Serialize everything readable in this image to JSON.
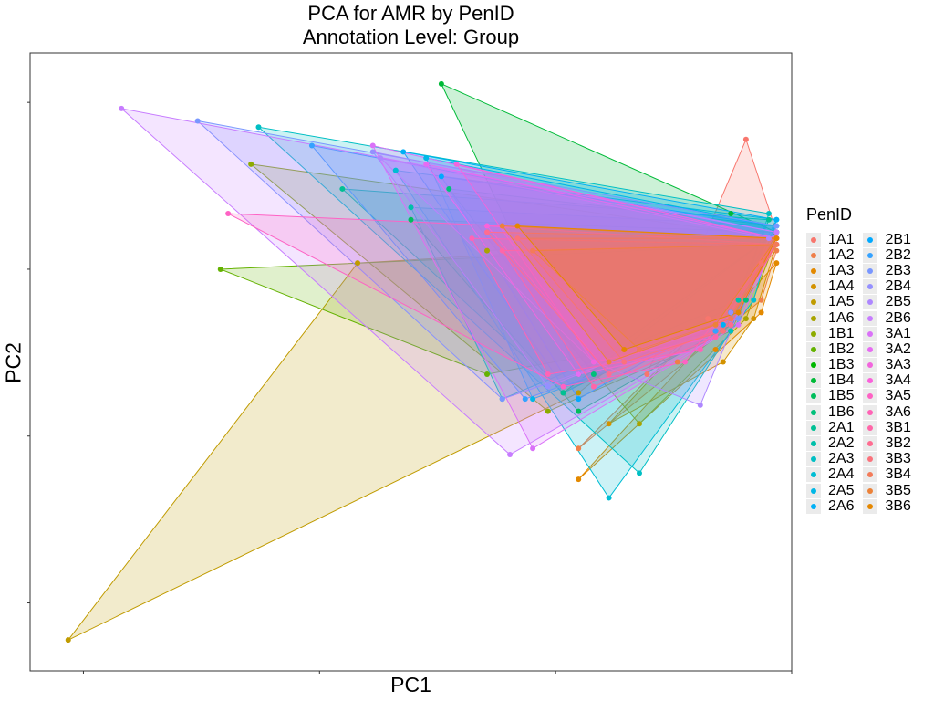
{
  "chart_data": {
    "type": "scatter",
    "title": "PCA for AMR by PenID",
    "subtitle": "Annotation Level: Group",
    "xlabel": "PC1",
    "ylabel": "PC2",
    "legend_title": "PenID",
    "legend_position": "right",
    "grid": false,
    "tick_labels_shown": false,
    "xlim": [
      0,
      100
    ],
    "ylim": [
      0,
      100
    ],
    "series": [
      {
        "name": "1A1",
        "color": "#F8766D",
        "points": [
          [
            94,
            86
          ],
          [
            98,
            71
          ],
          [
            96,
            66
          ],
          [
            89,
            57
          ],
          [
            81,
            48
          ]
        ]
      },
      {
        "name": "1A2",
        "color": "#EF7F49",
        "points": [
          [
            98,
            68
          ],
          [
            96,
            60
          ],
          [
            85,
            50
          ],
          [
            72,
            36
          ]
        ]
      },
      {
        "name": "1A3",
        "color": "#E38900",
        "points": [
          [
            98,
            66
          ],
          [
            96,
            58
          ],
          [
            90,
            52
          ],
          [
            72,
            31
          ]
        ]
      },
      {
        "name": "1A4",
        "color": "#D39200",
        "points": [
          [
            98,
            69
          ],
          [
            95,
            57
          ],
          [
            91,
            50
          ],
          [
            76,
            40
          ]
        ]
      },
      {
        "name": "1A5",
        "color": "#C09B00",
        "points": [
          [
            98,
            70
          ],
          [
            43,
            66
          ],
          [
            5,
            5
          ],
          [
            72,
            45
          ]
        ]
      },
      {
        "name": "1A6",
        "color": "#A9A400",
        "points": [
          [
            98,
            70
          ],
          [
            94,
            57
          ],
          [
            80,
            40
          ],
          [
            60,
            68
          ]
        ]
      },
      {
        "name": "1B1",
        "color": "#8DAB00",
        "points": [
          [
            98,
            70
          ],
          [
            29,
            82
          ],
          [
            92,
            55
          ],
          [
            68,
            42
          ]
        ]
      },
      {
        "name": "1B2",
        "color": "#64B200",
        "points": [
          [
            98,
            69
          ],
          [
            25,
            65
          ],
          [
            91,
            55
          ],
          [
            60,
            48
          ]
        ]
      },
      {
        "name": "1B3",
        "color": "#00B700",
        "points": [
          [
            98,
            71
          ],
          [
            92,
            58
          ],
          [
            70,
            45
          ]
        ]
      },
      {
        "name": "1B4",
        "color": "#00BA38",
        "points": [
          [
            98,
            71
          ],
          [
            54,
            95
          ],
          [
            92,
            74
          ],
          [
            72,
            48
          ]
        ]
      },
      {
        "name": "1B5",
        "color": "#00BD5C",
        "points": [
          [
            98,
            71
          ],
          [
            50,
            73
          ],
          [
            92,
            56
          ],
          [
            72,
            42
          ]
        ]
      },
      {
        "name": "1B6",
        "color": "#00C07A",
        "points": [
          [
            98,
            72
          ],
          [
            55,
            78
          ],
          [
            94,
            60
          ],
          [
            74,
            48
          ]
        ]
      },
      {
        "name": "2A1",
        "color": "#00C094",
        "points": [
          [
            97,
            73
          ],
          [
            41,
            78
          ],
          [
            92,
            58
          ],
          [
            70,
            45
          ]
        ]
      },
      {
        "name": "2A2",
        "color": "#00C0AA",
        "points": [
          [
            98,
            72
          ],
          [
            50,
            75
          ],
          [
            93,
            60
          ],
          [
            62,
            44
          ]
        ]
      },
      {
        "name": "2A3",
        "color": "#00BFC4",
        "points": [
          [
            97,
            74
          ],
          [
            30,
            88
          ],
          [
            80,
            32
          ],
          [
            92,
            55
          ]
        ]
      },
      {
        "name": "2A4",
        "color": "#00BDD4",
        "points": [
          [
            98,
            73
          ],
          [
            48,
            81
          ],
          [
            95,
            60
          ],
          [
            76,
            28
          ]
        ]
      },
      {
        "name": "2A5",
        "color": "#00B8E7",
        "points": [
          [
            98,
            72
          ],
          [
            52,
            83
          ],
          [
            90,
            55
          ],
          [
            66,
            44
          ]
        ]
      },
      {
        "name": "2A6",
        "color": "#00B0F6",
        "points": [
          [
            98,
            73
          ],
          [
            49,
            84
          ],
          [
            91,
            56
          ],
          [
            70,
            46
          ]
        ]
      },
      {
        "name": "2B1",
        "color": "#00A9FF",
        "points": [
          [
            98,
            72
          ],
          [
            54,
            80
          ],
          [
            92,
            58
          ],
          [
            72,
            44
          ]
        ]
      },
      {
        "name": "2B2",
        "color": "#35A2FF",
        "points": [
          [
            98,
            71
          ],
          [
            37,
            85
          ],
          [
            90,
            55
          ],
          [
            65,
            44
          ]
        ]
      },
      {
        "name": "2B3",
        "color": "#7997FF",
        "points": [
          [
            98,
            72
          ],
          [
            22,
            89
          ],
          [
            93,
            57
          ],
          [
            62,
            44
          ]
        ]
      },
      {
        "name": "2B4",
        "color": "#9590FF",
        "points": [
          [
            98,
            71
          ],
          [
            45,
            84
          ],
          [
            92,
            58
          ],
          [
            68,
            46
          ]
        ]
      },
      {
        "name": "2B5",
        "color": "#AE87FF",
        "points": [
          [
            97,
            70
          ],
          [
            46,
            83
          ],
          [
            88,
            43
          ],
          [
            74,
            50
          ]
        ]
      },
      {
        "name": "2B6",
        "color": "#C77CFF",
        "points": [
          [
            98,
            71
          ],
          [
            12,
            91
          ],
          [
            63,
            35
          ],
          [
            90,
            54
          ]
        ]
      },
      {
        "name": "3A1",
        "color": "#DA71F8",
        "points": [
          [
            98,
            70
          ],
          [
            45,
            85
          ],
          [
            66,
            36
          ],
          [
            93,
            56
          ]
        ]
      },
      {
        "name": "3A2",
        "color": "#E76BF3",
        "points": [
          [
            98,
            70
          ],
          [
            52,
            82
          ],
          [
            88,
            52
          ],
          [
            72,
            48
          ]
        ]
      },
      {
        "name": "3A3",
        "color": "#F265DD",
        "points": [
          [
            98,
            70
          ],
          [
            56,
            82
          ],
          [
            90,
            54
          ],
          [
            74,
            50
          ]
        ]
      },
      {
        "name": "3A4",
        "color": "#FA62DB",
        "points": [
          [
            98,
            69
          ],
          [
            60,
            72
          ],
          [
            92,
            56
          ],
          [
            76,
            48
          ]
        ]
      },
      {
        "name": "3A5",
        "color": "#FE62C4",
        "points": [
          [
            98,
            70
          ],
          [
            26,
            74
          ],
          [
            86,
            50
          ],
          [
            70,
            46
          ]
        ]
      },
      {
        "name": "3A6",
        "color": "#FF63B6",
        "points": [
          [
            98,
            69
          ],
          [
            58,
            70
          ],
          [
            88,
            52
          ],
          [
            68,
            48
          ]
        ]
      },
      {
        "name": "3B1",
        "color": "#FF66A8",
        "points": [
          [
            98,
            69
          ],
          [
            62,
            68
          ],
          [
            90,
            54
          ],
          [
            74,
            46
          ]
        ]
      },
      {
        "name": "3B2",
        "color": "#FF6C91",
        "points": [
          [
            98,
            70
          ],
          [
            60,
            71
          ],
          [
            92,
            56
          ],
          [
            76,
            48
          ]
        ]
      },
      {
        "name": "3B3",
        "color": "#FB727C",
        "points": [
          [
            98,
            70
          ],
          [
            64,
            70
          ],
          [
            91,
            55
          ],
          [
            78,
            50
          ]
        ]
      },
      {
        "name": "3B4",
        "color": "#F37B59",
        "points": [
          [
            98,
            69
          ],
          [
            66,
            68
          ],
          [
            92,
            57
          ],
          [
            80,
            52
          ]
        ]
      },
      {
        "name": "3B5",
        "color": "#EC8239",
        "points": [
          [
            98,
            70
          ],
          [
            62,
            72
          ],
          [
            90,
            56
          ],
          [
            76,
            50
          ]
        ]
      },
      {
        "name": "3B6",
        "color": "#E58700",
        "points": [
          [
            98,
            70
          ],
          [
            64,
            72
          ],
          [
            93,
            58
          ],
          [
            78,
            52
          ]
        ]
      }
    ]
  }
}
